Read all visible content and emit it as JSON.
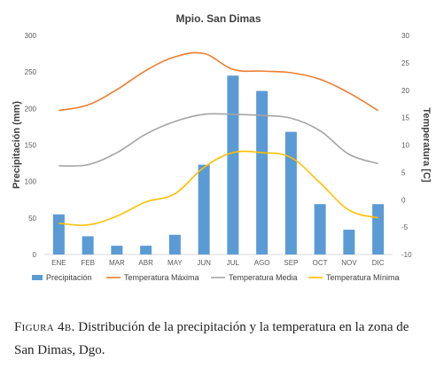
{
  "chart_data": {
    "type": "bar+line",
    "title": "Mpio. San Dimas",
    "categories": [
      "ENE",
      "FEB",
      "MAR",
      "ABR",
      "MAY",
      "JUN",
      "JUL",
      "AGO",
      "SEP",
      "OCT",
      "NOV",
      "DIC"
    ],
    "ylabel": "Precipitación (mm)",
    "ylabel_right": "Temperatura [C]",
    "ylim": [
      0,
      300
    ],
    "ylim_right": [
      -10,
      30
    ],
    "yticks": [
      0,
      50,
      100,
      150,
      200,
      250,
      300
    ],
    "yticks_right": [
      -10,
      -5,
      0,
      5,
      10,
      15,
      20,
      25,
      30
    ],
    "grid": false,
    "legend_position": "bottom",
    "bar_series": {
      "name": "Precipitación",
      "axis": "left",
      "color": "#5b9bd5",
      "values": [
        55,
        25,
        12,
        12,
        27,
        123,
        245,
        224,
        168,
        69,
        34,
        69
      ]
    },
    "line_series": [
      {
        "name": "Temperatura Máxima",
        "axis": "right",
        "color": "#ed7d31",
        "values": [
          16.3,
          17.3,
          20.1,
          23.6,
          26.1,
          26.7,
          23.8,
          23.5,
          23.2,
          22.0,
          19.5,
          16.3
        ]
      },
      {
        "name": "Temperatura Media",
        "axis": "right",
        "color": "#a5a5a5",
        "values": [
          6.2,
          6.4,
          8.6,
          12.0,
          14.3,
          15.6,
          15.6,
          15.4,
          14.9,
          12.6,
          8.3,
          6.6
        ]
      },
      {
        "name": "Temperatura Mínima",
        "axis": "right",
        "color": "#ffc000",
        "values": [
          -4.3,
          -4.6,
          -3.0,
          -0.4,
          1.1,
          5.9,
          8.6,
          8.6,
          7.7,
          3.1,
          -1.9,
          -3.3
        ]
      }
    ]
  },
  "caption": {
    "label": "Figura 4b.",
    "text": "Distribución de la precipitación y la temperatura en la zona de San Dimas, Dgo."
  }
}
